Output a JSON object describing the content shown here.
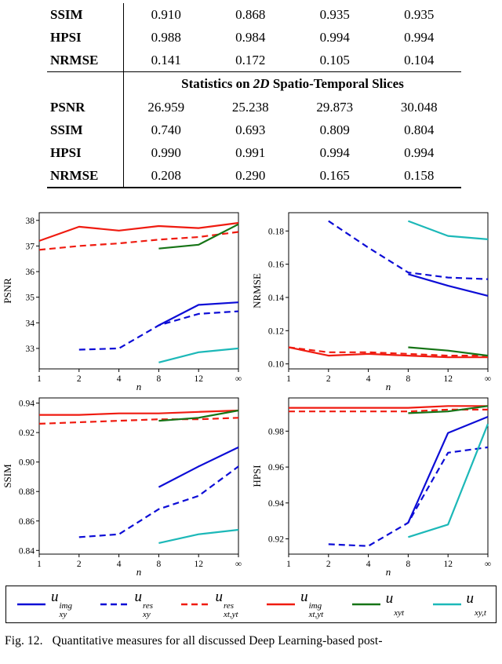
{
  "colors": {
    "blue": "#0d0dd6",
    "red": "#ef1b10",
    "green": "#167416",
    "cyan": "#1cb8b8",
    "axis": "#000000"
  },
  "table": {
    "top_rows": [
      {
        "label": "SSIM",
        "values": [
          "0.910",
          "0.868",
          "0.935",
          "0.935"
        ]
      },
      {
        "label": "HPSI",
        "values": [
          "0.988",
          "0.984",
          "0.994",
          "0.994"
        ]
      },
      {
        "label": "NRMSE",
        "values": [
          "0.141",
          "0.172",
          "0.105",
          "0.104"
        ]
      }
    ],
    "section": {
      "pre": "Statistics on ",
      "math": "2D",
      "post": " Spatio-Temporal Slices"
    },
    "bottom_rows": [
      {
        "label": "PSNR",
        "values": [
          "26.959",
          "25.238",
          "29.873",
          "30.048"
        ]
      },
      {
        "label": "SSIM",
        "values": [
          "0.740",
          "0.693",
          "0.809",
          "0.804"
        ]
      },
      {
        "label": "HPSI",
        "values": [
          "0.990",
          "0.991",
          "0.994",
          "0.994"
        ]
      },
      {
        "label": "NRMSE",
        "values": [
          "0.208",
          "0.290",
          "0.165",
          "0.158"
        ]
      }
    ]
  },
  "chart_data": [
    {
      "type": "line",
      "ylabel": "PSNR",
      "xlabel": "n",
      "xticklabels": [
        "1",
        "2",
        "4",
        "8",
        "12",
        "∞"
      ],
      "yticks": [
        33,
        34,
        35,
        36,
        37,
        38
      ],
      "ytick_labels": [
        "33",
        "34",
        "35",
        "36",
        "37",
        "38"
      ],
      "ylim": [
        32.2,
        38.3
      ],
      "legend_position": "outside-bottom",
      "grid": false,
      "series": [
        {
          "name": "u_xy^img",
          "color": "blue",
          "dash": false,
          "values": [
            null,
            null,
            null,
            33.9,
            34.7,
            34.8
          ]
        },
        {
          "name": "u_xy^res",
          "color": "blue",
          "dash": true,
          "values": [
            null,
            32.95,
            33.0,
            33.9,
            34.35,
            34.45
          ]
        },
        {
          "name": "u_xt,yt^res",
          "color": "red",
          "dash": true,
          "values": [
            36.85,
            37.0,
            37.1,
            37.25,
            37.35,
            37.55
          ]
        },
        {
          "name": "u_xt,yt^img",
          "color": "red",
          "dash": false,
          "values": [
            37.2,
            37.75,
            37.6,
            37.78,
            37.7,
            37.9
          ]
        },
        {
          "name": "u_xyt",
          "color": "green",
          "dash": false,
          "values": [
            null,
            null,
            null,
            36.9,
            37.05,
            37.85
          ]
        },
        {
          "name": "u_xy,t",
          "color": "cyan",
          "dash": false,
          "values": [
            null,
            null,
            null,
            32.45,
            32.85,
            33.0
          ]
        }
      ]
    },
    {
      "type": "line",
      "ylabel": "NRMSE",
      "xlabel": "n",
      "xticklabels": [
        "1",
        "2",
        "4",
        "8",
        "12",
        "∞"
      ],
      "yticks": [
        0.1,
        0.12,
        0.14,
        0.16,
        0.18
      ],
      "ytick_labels": [
        "0.10",
        "0.12",
        "0.14",
        "0.16",
        "0.18"
      ],
      "ylim": [
        0.097,
        0.191
      ],
      "grid": false,
      "series": [
        {
          "name": "u_xy^img",
          "color": "blue",
          "dash": false,
          "values": [
            null,
            null,
            null,
            0.154,
            0.147,
            0.141
          ]
        },
        {
          "name": "u_xy^res",
          "color": "blue",
          "dash": true,
          "values": [
            null,
            0.186,
            0.17,
            0.155,
            0.152,
            0.151
          ]
        },
        {
          "name": "u_xt,yt^res",
          "color": "red",
          "dash": true,
          "values": [
            0.11,
            0.107,
            0.107,
            0.106,
            0.105,
            0.105
          ]
        },
        {
          "name": "u_xt,yt^img",
          "color": "red",
          "dash": false,
          "values": [
            0.11,
            0.105,
            0.106,
            0.105,
            0.104,
            0.104
          ]
        },
        {
          "name": "u_xyt",
          "color": "green",
          "dash": false,
          "values": [
            null,
            null,
            null,
            0.11,
            0.108,
            0.105
          ]
        },
        {
          "name": "u_xy,t",
          "color": "cyan",
          "dash": false,
          "values": [
            null,
            null,
            null,
            0.186,
            0.177,
            0.175
          ]
        }
      ]
    },
    {
      "type": "line",
      "ylabel": "SSIM",
      "xlabel": "n",
      "xticklabels": [
        "1",
        "2",
        "4",
        "8",
        "12",
        "∞"
      ],
      "yticks": [
        0.84,
        0.86,
        0.88,
        0.9,
        0.92,
        0.94
      ],
      "ytick_labels": [
        "0.84",
        "0.86",
        "0.88",
        "0.90",
        "0.92",
        "0.94"
      ],
      "ylim": [
        0.8375,
        0.9435
      ],
      "grid": false,
      "series": [
        {
          "name": "u_xy^img",
          "color": "blue",
          "dash": false,
          "values": [
            null,
            null,
            null,
            0.883,
            0.897,
            0.91
          ]
        },
        {
          "name": "u_xy^res",
          "color": "blue",
          "dash": true,
          "values": [
            null,
            0.849,
            0.851,
            0.868,
            0.877,
            0.897
          ]
        },
        {
          "name": "u_xt,yt^res",
          "color": "red",
          "dash": true,
          "values": [
            0.926,
            0.927,
            0.928,
            0.929,
            0.929,
            0.93
          ]
        },
        {
          "name": "u_xt,yt^img",
          "color": "red",
          "dash": false,
          "values": [
            0.932,
            0.932,
            0.933,
            0.933,
            0.934,
            0.935
          ]
        },
        {
          "name": "u_xyt",
          "color": "green",
          "dash": false,
          "values": [
            null,
            null,
            null,
            0.928,
            0.93,
            0.935
          ]
        },
        {
          "name": "u_xy,t",
          "color": "cyan",
          "dash": false,
          "values": [
            null,
            null,
            null,
            0.845,
            0.851,
            0.854
          ]
        }
      ]
    },
    {
      "type": "line",
      "ylabel": "HPSI",
      "xlabel": "n",
      "xticklabels": [
        "1",
        "2",
        "4",
        "8",
        "12",
        "∞"
      ],
      "yticks": [
        0.92,
        0.94,
        0.96,
        0.98
      ],
      "ytick_labels": [
        "0.92",
        "0.94",
        "0.96",
        "0.98"
      ],
      "ylim": [
        0.9115,
        0.9985
      ],
      "grid": false,
      "series": [
        {
          "name": "u_xy^img",
          "color": "blue",
          "dash": false,
          "values": [
            null,
            null,
            null,
            0.929,
            0.979,
            0.988
          ]
        },
        {
          "name": "u_xy^res",
          "color": "blue",
          "dash": true,
          "values": [
            null,
            0.917,
            0.916,
            0.929,
            0.968,
            0.971
          ]
        },
        {
          "name": "u_xt,yt^res",
          "color": "red",
          "dash": true,
          "values": [
            0.991,
            0.991,
            0.991,
            0.991,
            0.992,
            0.992
          ]
        },
        {
          "name": "u_xt,yt^img",
          "color": "red",
          "dash": false,
          "values": [
            0.993,
            0.993,
            0.993,
            0.993,
            0.994,
            0.994
          ]
        },
        {
          "name": "u_xyt",
          "color": "green",
          "dash": false,
          "values": [
            null,
            null,
            null,
            0.99,
            0.991,
            0.994
          ]
        },
        {
          "name": "u_xy,t",
          "color": "cyan",
          "dash": false,
          "values": [
            null,
            null,
            null,
            0.921,
            0.928,
            0.984
          ]
        }
      ]
    }
  ],
  "legend": {
    "items": [
      {
        "base": "u",
        "sup": "img",
        "sub": "xy",
        "style": "solid",
        "color": "blue"
      },
      {
        "base": "u",
        "sup": "res",
        "sub": "xy",
        "style": "dashed",
        "color": "blue"
      },
      {
        "base": "u",
        "sup": "res",
        "sub": "xt,yt",
        "style": "dashed",
        "color": "red"
      },
      {
        "base": "u",
        "sup": "img",
        "sub": "xt,yt",
        "style": "solid",
        "color": "red"
      },
      {
        "base": "u",
        "sup": "",
        "sub": "xyt",
        "style": "solid",
        "color": "green"
      },
      {
        "base": "u",
        "sup": "",
        "sub": "xy,t",
        "style": "solid",
        "color": "cyan"
      }
    ]
  },
  "caption": {
    "label": "Fig. 12.",
    "text": "Quantitative measures for all discussed Deep Learning-based post-"
  }
}
